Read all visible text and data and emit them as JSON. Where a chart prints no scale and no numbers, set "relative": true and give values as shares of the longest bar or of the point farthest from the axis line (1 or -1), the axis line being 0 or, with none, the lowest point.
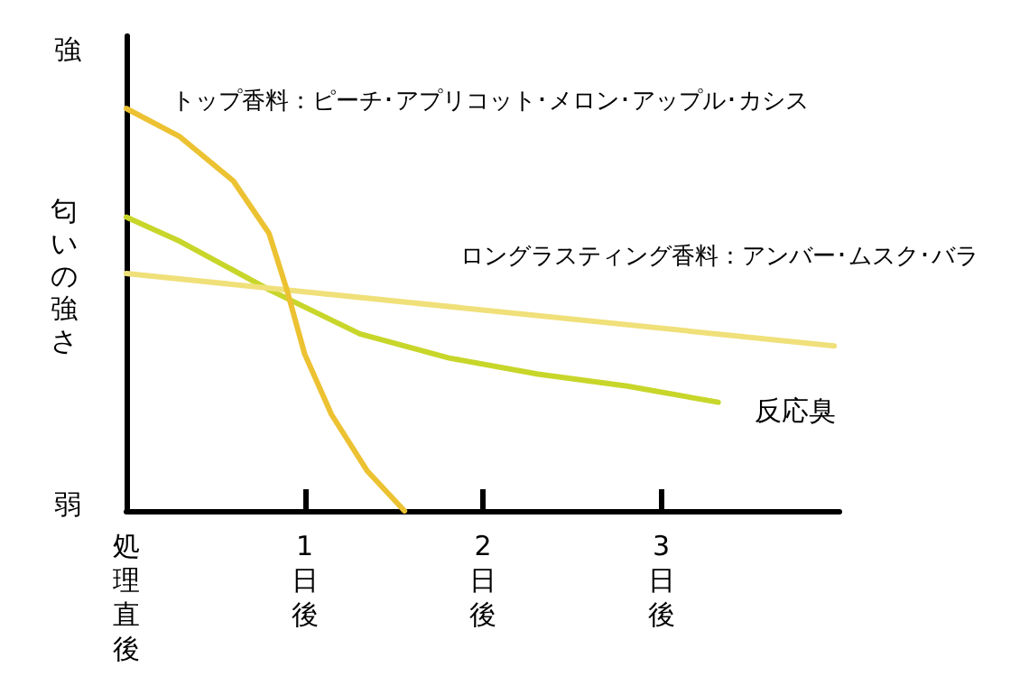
{
  "chart_data": {
    "type": "line",
    "relative": true,
    "ylabel": "匂いの強さ",
    "annotations": [
      "強",
      "弱"
    ],
    "xlim": [
      0,
      4
    ],
    "xticks": [
      {
        "value": 0,
        "label": "処理直後"
      },
      {
        "value": 1,
        "label": "1日後"
      },
      {
        "value": 2,
        "label": "2日後"
      },
      {
        "value": 3,
        "label": "3日後"
      }
    ],
    "marker": "none",
    "grid": false,
    "legend": false,
    "series": [
      {
        "name": "トップ香料：ピーチ･アプリコット･メロン･アップル･カシス",
        "color": "#ecc232",
        "x": [
          0,
          0.3,
          0.6,
          0.8,
          0.9,
          1.0,
          1.15,
          1.35,
          1.56
        ],
        "values": [
          1.0,
          0.93,
          0.82,
          0.69,
          0.55,
          0.39,
          0.24,
          0.1,
          0
        ]
      },
      {
        "name": "ロングラスティング香料：アンバー･ムスク･バラ",
        "color": "#f0e07a",
        "x": [
          0,
          3.97
        ],
        "values": [
          0.59,
          0.41
        ]
      },
      {
        "name": "反応臭",
        "color": "#c8d62a",
        "x": [
          0,
          0.3,
          0.8,
          1.31,
          1.81,
          2.31,
          2.81,
          3.32
        ],
        "values": [
          0.73,
          0.67,
          0.55,
          0.44,
          0.38,
          0.34,
          0.31,
          0.27
        ]
      }
    ]
  }
}
